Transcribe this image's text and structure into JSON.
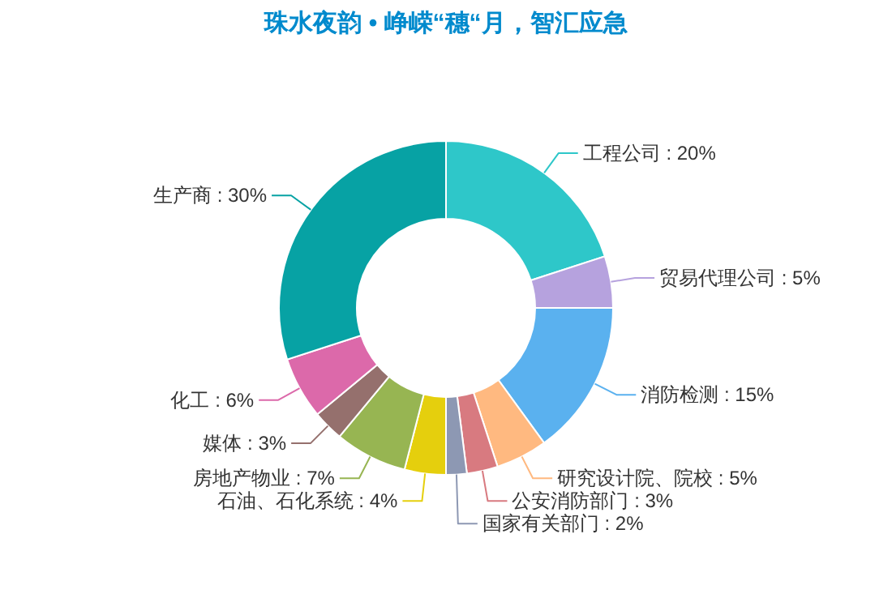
{
  "chart_data": {
    "type": "donut",
    "title": "珠水夜韵 • 峥嵘“穗“月，智汇应急",
    "categories": [
      "工程公司",
      "贸易代理公司",
      "消防检测",
      "研究设计院、院校",
      "公安消防部门",
      "国家有关部门",
      "石油、石化系统",
      "房地产物业",
      "媒体",
      "化工",
      "生产商"
    ],
    "values": [
      20,
      5,
      15,
      5,
      3,
      2,
      4,
      7,
      3,
      6,
      30
    ],
    "value_labels": [
      "20%",
      "5%",
      "15%",
      "5%",
      "3%",
      "2%",
      "4%",
      "7%",
      "3%",
      "6%",
      "30%"
    ],
    "colors": [
      "#2ec7c9",
      "#b6a2de",
      "#5ab1ef",
      "#ffb980",
      "#d87a80",
      "#8d98b3",
      "#e5cf0d",
      "#97b552",
      "#95706d",
      "#dc69aa",
      "#07a2a4"
    ]
  }
}
